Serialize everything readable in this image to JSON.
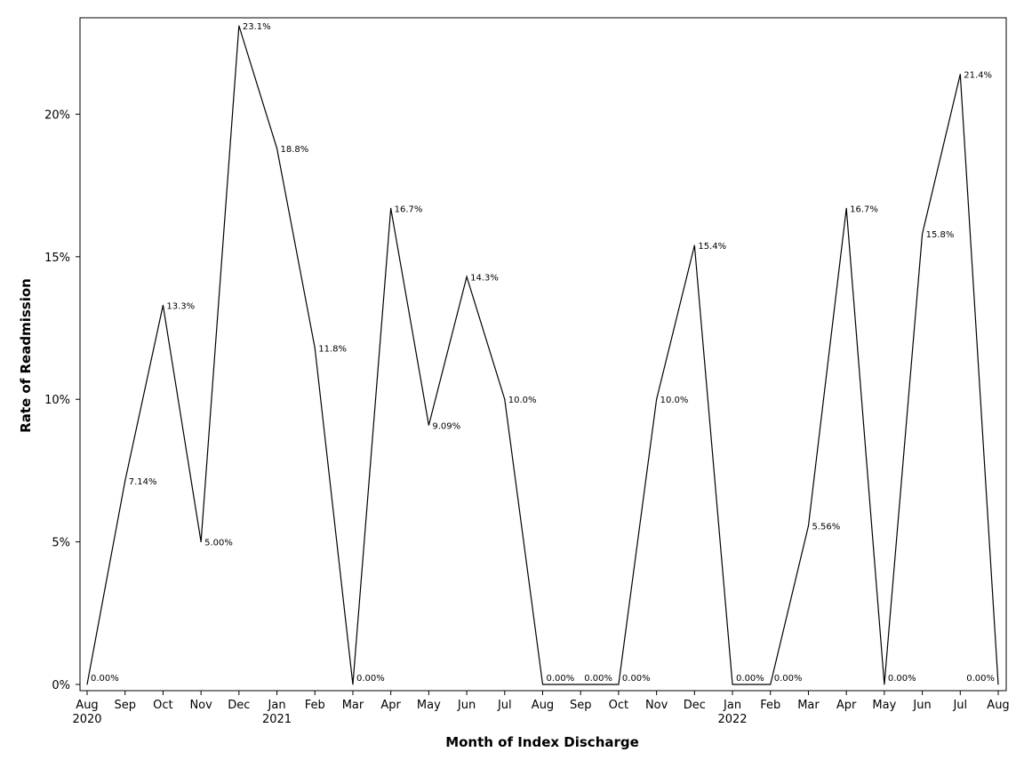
{
  "chart_data": {
    "type": "line",
    "xlabel": "Month of Index Discharge",
    "ylabel": "Rate of Readmission",
    "ylim": [
      0,
      23.1
    ],
    "yticks": [
      0,
      5,
      10,
      15,
      20
    ],
    "ytick_labels": [
      "0%",
      "5%",
      "10%",
      "15%",
      "20%"
    ],
    "grid": false,
    "x": [
      "Aug 2020",
      "Sep 2020",
      "Oct 2020",
      "Nov 2020",
      "Dec 2020",
      "Jan 2021",
      "Feb 2021",
      "Mar 2021",
      "Apr 2021",
      "May 2021",
      "Jun 2021",
      "Jul 2021",
      "Aug 2021",
      "Sep 2021",
      "Oct 2021",
      "Nov 2021",
      "Dec 2021",
      "Jan 2022",
      "Feb 2022",
      "Mar 2022",
      "Apr 2022",
      "May 2022",
      "Jun 2022",
      "Jul 2022",
      "Aug 2022"
    ],
    "month_labels": [
      "Aug",
      "Sep",
      "Oct",
      "Nov",
      "Dec",
      "Jan",
      "Feb",
      "Mar",
      "Apr",
      "May",
      "Jun",
      "Jul",
      "Aug",
      "Sep",
      "Oct",
      "Nov",
      "Dec",
      "Jan",
      "Feb",
      "Mar",
      "Apr",
      "May",
      "Jun",
      "Jul",
      "Aug"
    ],
    "year_labels": [
      {
        "index": 0,
        "text": "2020"
      },
      {
        "index": 5,
        "text": "2021"
      },
      {
        "index": 17,
        "text": "2022"
      }
    ],
    "values": [
      0,
      7.14,
      13.3,
      5.0,
      23.1,
      18.8,
      11.8,
      0,
      16.7,
      9.09,
      14.3,
      10.0,
      0,
      0,
      0,
      10.0,
      15.4,
      0,
      0,
      5.56,
      16.7,
      0,
      15.8,
      21.4,
      0
    ],
    "value_labels": [
      "0.00%",
      "7.14%",
      "13.3%",
      "5.00%",
      "23.1%",
      "18.8%",
      "11.8%",
      "0.00%",
      "16.7%",
      "9.09%",
      "14.3%",
      "10.0%",
      "0.00%",
      "0.00%",
      "0.00%",
      "10.0%",
      "15.4%",
      "0.00%",
      "0.00%",
      "5.56%",
      "16.7%",
      "0.00%",
      "15.8%",
      "21.4%",
      "0.00%"
    ],
    "line_color": "#000000"
  }
}
